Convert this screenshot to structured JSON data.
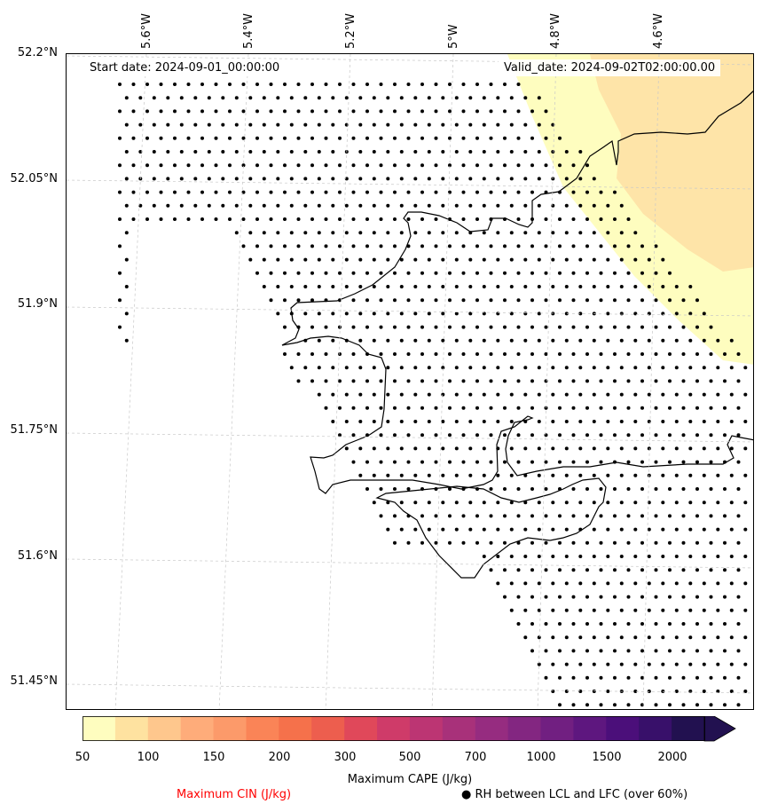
{
  "map": {
    "start_date": "Start date: 2024-09-01_00:00:00",
    "valid_date": "Valid_date: 2024-09-02T02:00:00.00",
    "lon_labels": [
      "5.6°W",
      "5.4°W",
      "5.2°W",
      "5°W",
      "4.8°W",
      "4.6°W"
    ],
    "lat_labels": [
      "52.2°N",
      "52.05°N",
      "51.9°N",
      "51.75°N",
      "51.6°N",
      "51.45°N"
    ]
  },
  "colorbar": {
    "ticks": [
      "50",
      "100",
      "150",
      "200",
      "300",
      "500",
      "700",
      "1000",
      "1500",
      "2000"
    ],
    "colors": [
      "#fefdbf",
      "#fee2a0",
      "#fec78d",
      "#feac7a",
      "#fc9a6a",
      "#fa8457",
      "#f5714b",
      "#ed5e4e",
      "#e0485a",
      "#cf3b69",
      "#bc3573",
      "#a8317a",
      "#962c80",
      "#832681",
      "#711f81",
      "#5e177f",
      "#4b0f7a",
      "#38106a",
      "#221150"
    ],
    "cape_label": "Maximum CAPE (J/kg)",
    "cin_label": "Maximum CIN (J/kg)",
    "rh_label": "● RH between LCL and LFC (over 60%)"
  }
}
